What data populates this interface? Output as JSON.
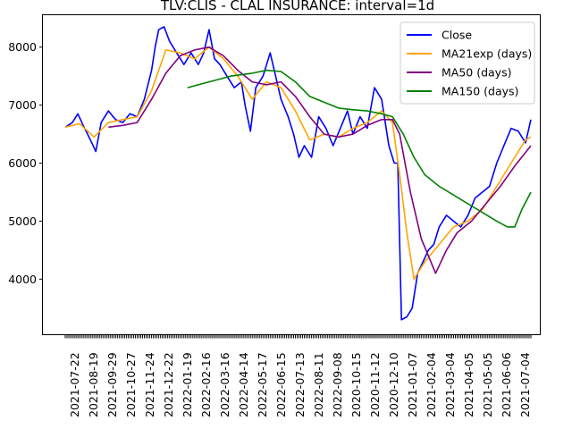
{
  "chart_data": {
    "type": "line",
    "title": "TLV:CLIS - CLAL INSURANCE: interval=1d",
    "xlabel": "",
    "ylabel": "",
    "ylim": [
      3050,
      8550
    ],
    "yticks": [
      4000,
      5000,
      6000,
      7000,
      8000
    ],
    "grid": false,
    "legend": "top-right",
    "xtick_labels": [
      "2021-07-22",
      "2021-08-19",
      "2021-09-29",
      "2021-10-27",
      "2021-11-24",
      "2021-12-22",
      "2022-01-19",
      "2022-02-16",
      "2022-03-16",
      "2022-04-14",
      "2022-05-17",
      "2022-06-15",
      "2022-07-13",
      "2022-08-11",
      "2022-09-08",
      "2020-10-15",
      "2020-11-12",
      "2020-12-10",
      "2021-01-07",
      "2021-02-04",
      "2021-03-04",
      "2021-04-05",
      "2021-05-05",
      "2021-06-06",
      "2021-07-04"
    ],
    "num_points": 260,
    "series": [
      {
        "name": "Close",
        "color": "#0000ff",
        "points": [
          [
            0,
            6620
          ],
          [
            4,
            6700
          ],
          [
            7,
            6850
          ],
          [
            10,
            6650
          ],
          [
            14,
            6400
          ],
          [
            17,
            6200
          ],
          [
            20,
            6700
          ],
          [
            24,
            6900
          ],
          [
            28,
            6750
          ],
          [
            32,
            6700
          ],
          [
            36,
            6850
          ],
          [
            40,
            6800
          ],
          [
            44,
            7100
          ],
          [
            48,
            7600
          ],
          [
            50,
            8000
          ],
          [
            52,
            8300
          ],
          [
            55,
            8350
          ],
          [
            58,
            8100
          ],
          [
            62,
            7900
          ],
          [
            66,
            7700
          ],
          [
            70,
            7900
          ],
          [
            74,
            7700
          ],
          [
            77,
            7900
          ],
          [
            80,
            8300
          ],
          [
            83,
            7800
          ],
          [
            86,
            7700
          ],
          [
            90,
            7500
          ],
          [
            94,
            7300
          ],
          [
            98,
            7400
          ],
          [
            100,
            7000
          ],
          [
            103,
            6550
          ],
          [
            106,
            7300
          ],
          [
            110,
            7500
          ],
          [
            114,
            7900
          ],
          [
            117,
            7500
          ],
          [
            120,
            7100
          ],
          [
            124,
            6800
          ],
          [
            127,
            6500
          ],
          [
            130,
            6100
          ],
          [
            133,
            6300
          ],
          [
            137,
            6100
          ],
          [
            141,
            6800
          ],
          [
            145,
            6600
          ],
          [
            149,
            6300
          ],
          [
            153,
            6600
          ],
          [
            157,
            6900
          ],
          [
            160,
            6500
          ],
          [
            164,
            6800
          ],
          [
            168,
            6600
          ],
          [
            172,
            7300
          ],
          [
            176,
            7100
          ],
          [
            180,
            6300
          ],
          [
            183,
            6000
          ],
          [
            185,
            6000
          ],
          [
            187,
            3300
          ],
          [
            190,
            3350
          ],
          [
            193,
            3500
          ],
          [
            196,
            4100
          ],
          [
            199,
            4300
          ],
          [
            202,
            4500
          ],
          [
            205,
            4600
          ],
          [
            208,
            4900
          ],
          [
            212,
            5100
          ],
          [
            216,
            5000
          ],
          [
            220,
            4900
          ],
          [
            224,
            5100
          ],
          [
            228,
            5400
          ],
          [
            232,
            5500
          ],
          [
            236,
            5600
          ],
          [
            240,
            6000
          ],
          [
            244,
            6300
          ],
          [
            248,
            6600
          ],
          [
            252,
            6550
          ],
          [
            256,
            6350
          ],
          [
            259,
            6750
          ]
        ]
      },
      {
        "name": "MA21exp (days)",
        "color": "#ffa500",
        "points": [
          [
            0,
            6620
          ],
          [
            8,
            6680
          ],
          [
            16,
            6450
          ],
          [
            24,
            6700
          ],
          [
            32,
            6750
          ],
          [
            40,
            6800
          ],
          [
            48,
            7250
          ],
          [
            56,
            7950
          ],
          [
            64,
            7900
          ],
          [
            72,
            7800
          ],
          [
            80,
            8000
          ],
          [
            88,
            7800
          ],
          [
            96,
            7500
          ],
          [
            104,
            7100
          ],
          [
            112,
            7400
          ],
          [
            120,
            7300
          ],
          [
            128,
            6900
          ],
          [
            136,
            6400
          ],
          [
            144,
            6500
          ],
          [
            152,
            6450
          ],
          [
            160,
            6600
          ],
          [
            168,
            6700
          ],
          [
            176,
            6900
          ],
          [
            182,
            6700
          ],
          [
            186,
            5800
          ],
          [
            190,
            4800
          ],
          [
            194,
            4000
          ],
          [
            200,
            4300
          ],
          [
            208,
            4600
          ],
          [
            216,
            4900
          ],
          [
            224,
            5000
          ],
          [
            232,
            5200
          ],
          [
            240,
            5600
          ],
          [
            248,
            6000
          ],
          [
            256,
            6400
          ],
          [
            259,
            6450
          ]
        ]
      },
      {
        "name": "MA50 (days)",
        "color": "#800080",
        "points": [
          [
            24,
            6620
          ],
          [
            32,
            6650
          ],
          [
            40,
            6700
          ],
          [
            48,
            7100
          ],
          [
            56,
            7550
          ],
          [
            64,
            7850
          ],
          [
            72,
            7950
          ],
          [
            80,
            8000
          ],
          [
            88,
            7850
          ],
          [
            96,
            7600
          ],
          [
            104,
            7400
          ],
          [
            112,
            7350
          ],
          [
            120,
            7400
          ],
          [
            128,
            7150
          ],
          [
            136,
            6800
          ],
          [
            144,
            6500
          ],
          [
            152,
            6450
          ],
          [
            160,
            6500
          ],
          [
            168,
            6650
          ],
          [
            176,
            6750
          ],
          [
            182,
            6750
          ],
          [
            186,
            6500
          ],
          [
            192,
            5500
          ],
          [
            198,
            4700
          ],
          [
            206,
            4100
          ],
          [
            212,
            4500
          ],
          [
            218,
            4800
          ],
          [
            226,
            5000
          ],
          [
            234,
            5300
          ],
          [
            242,
            5600
          ],
          [
            250,
            5950
          ],
          [
            259,
            6300
          ]
        ]
      },
      {
        "name": "MA150 (days)",
        "color": "#008000",
        "points": [
          [
            68,
            7300
          ],
          [
            80,
            7400
          ],
          [
            92,
            7500
          ],
          [
            104,
            7550
          ],
          [
            112,
            7600
          ],
          [
            120,
            7580
          ],
          [
            128,
            7400
          ],
          [
            136,
            7150
          ],
          [
            144,
            7050
          ],
          [
            152,
            6950
          ],
          [
            160,
            6920
          ],
          [
            168,
            6900
          ],
          [
            176,
            6850
          ],
          [
            182,
            6800
          ],
          [
            188,
            6500
          ],
          [
            194,
            6100
          ],
          [
            200,
            5800
          ],
          [
            208,
            5600
          ],
          [
            216,
            5450
          ],
          [
            224,
            5300
          ],
          [
            232,
            5150
          ],
          [
            240,
            5000
          ],
          [
            246,
            4900
          ],
          [
            250,
            4900
          ],
          [
            254,
            5200
          ],
          [
            259,
            5500
          ]
        ]
      }
    ]
  }
}
